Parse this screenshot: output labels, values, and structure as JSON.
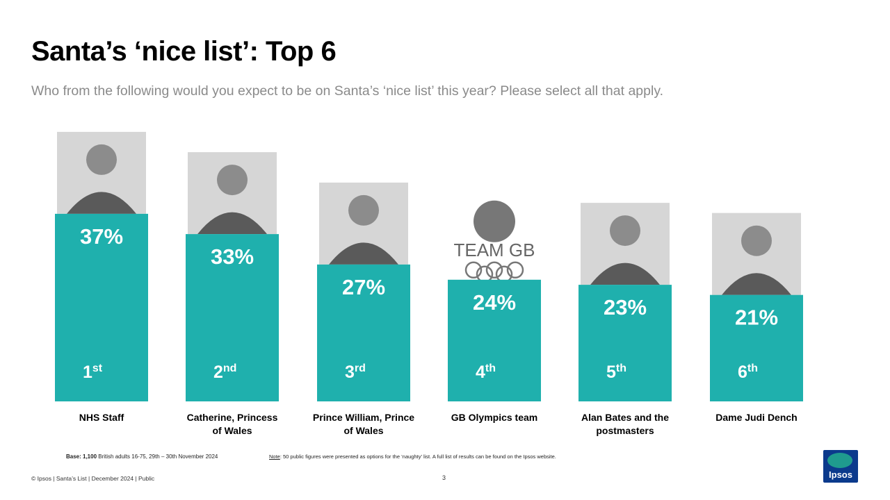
{
  "header": {
    "title": "Santa’s ‘nice list’: Top 6",
    "subtitle": "Who from the following would you expect to be on Santa’s ‘nice list’ this year? Please select all that apply."
  },
  "chart_data": {
    "type": "bar",
    "categories": [
      "NHS Staff",
      "Catherine, Princess of Wales",
      "Prince William, Prince of Wales",
      "GB Olympics team",
      "Alan Bates and the postmasters",
      "Dame Judi Dench"
    ],
    "category_lines": [
      [
        "NHS Staff"
      ],
      [
        "Catherine, Princess",
        "of Wales"
      ],
      [
        "Prince William, Prince",
        "of Wales"
      ],
      [
        "GB Olympics team"
      ],
      [
        "Alan Bates and the",
        "postmasters"
      ],
      [
        "Dame Judi Dench"
      ]
    ],
    "values": [
      37,
      33,
      27,
      24,
      23,
      21
    ],
    "labels": [
      "37%",
      "33%",
      "27%",
      "24%",
      "23%",
      "21%"
    ],
    "ranks": [
      {
        "num": "1",
        "suffix": "st"
      },
      {
        "num": "2",
        "suffix": "nd"
      },
      {
        "num": "3",
        "suffix": "rd"
      },
      {
        "num": "4",
        "suffix": "th"
      },
      {
        "num": "5",
        "suffix": "th"
      },
      {
        "num": "6",
        "suffix": "th"
      }
    ],
    "bar_color": "#1fb0ad",
    "image_labels": [
      "",
      "",
      "",
      "TEAM GB",
      "",
      ""
    ]
  },
  "footer": {
    "base_bold": "Base: 1,100",
    "base_text": " British adults 16-75, 29th – 30th  November 2024",
    "note_label": "Note",
    "note_text": ": 50 public figures were presented as options for the ‘naughty’ list. A full list of results can be found on the Ipsos website.",
    "copyright": "© Ipsos | Santa’s List | December 2024 | Public",
    "page": "3"
  },
  "logo": {
    "text": "Ipsos",
    "color": "#0b3a8c",
    "accent": "#1f9b8e"
  }
}
